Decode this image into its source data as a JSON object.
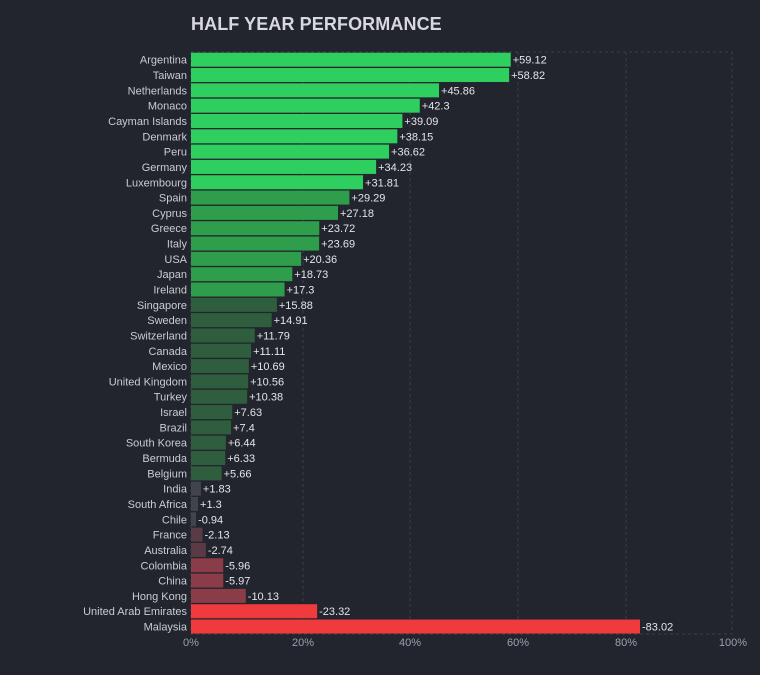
{
  "chart_data": {
    "type": "bar",
    "orientation": "horizontal",
    "title": "HALF YEAR PERFORMANCE",
    "categories": [
      "Argentina",
      "Taiwan",
      "Netherlands",
      "Monaco",
      "Cayman Islands",
      "Denmark",
      "Peru",
      "Germany",
      "Luxembourg",
      "Spain",
      "Cyprus",
      "Greece",
      "Italy",
      "USA",
      "Japan",
      "Ireland",
      "Singapore",
      "Sweden",
      "Switzerland",
      "Canada",
      "Mexico",
      "United Kingdom",
      "Turkey",
      "Israel",
      "Brazil",
      "South Korea",
      "Bermuda",
      "Belgium",
      "India",
      "South Africa",
      "Chile",
      "France",
      "Australia",
      "Colombia",
      "China",
      "Hong Kong",
      "United Arab Emirates",
      "Malaysia"
    ],
    "values": [
      59.12,
      58.82,
      45.86,
      42.3,
      39.09,
      38.15,
      36.62,
      34.23,
      31.81,
      29.29,
      27.18,
      23.72,
      23.69,
      20.36,
      18.73,
      17.3,
      15.88,
      14.91,
      11.79,
      11.11,
      10.69,
      10.56,
      10.38,
      7.63,
      7.4,
      6.44,
      6.33,
      5.66,
      1.83,
      1.3,
      -0.94,
      -2.13,
      -2.74,
      -5.96,
      -5.97,
      -10.13,
      -23.32,
      -83.02
    ],
    "value_labels": [
      "+59.12",
      "+58.82",
      "+45.86",
      "+42.3",
      "+39.09",
      "+38.15",
      "+36.62",
      "+34.23",
      "+31.81",
      "+29.29",
      "+27.18",
      "+23.72",
      "+23.69",
      "+20.36",
      "+18.73",
      "+17.3",
      "+15.88",
      "+14.91",
      "+11.79",
      "+11.11",
      "+10.69",
      "+10.56",
      "+10.38",
      "+7.63",
      "+7.4",
      "+6.44",
      "+6.33",
      "+5.66",
      "+1.83",
      "+1.3",
      "-0.94",
      "-2.13",
      "-2.74",
      "-5.96",
      "-5.97",
      "-10.13",
      "-23.32",
      "-83.02"
    ],
    "xlim": [
      0,
      100
    ],
    "xticks": [
      "0%",
      "20%",
      "40%",
      "60%",
      "80%",
      "100%"
    ],
    "tick_values": [
      0,
      20,
      40,
      60,
      80,
      100
    ],
    "x_scale_max": 83.02,
    "grid": true,
    "colors": {
      "positive_strong": "#2ecf5f",
      "positive_mid": "#2e9e4c",
      "positive_weak": "#2f5e3f",
      "neutral": "#41444d",
      "negative_weak": "#5a3a44",
      "negative_mid": "#8a3c48",
      "negative_strong": "#ef3b3e"
    }
  }
}
